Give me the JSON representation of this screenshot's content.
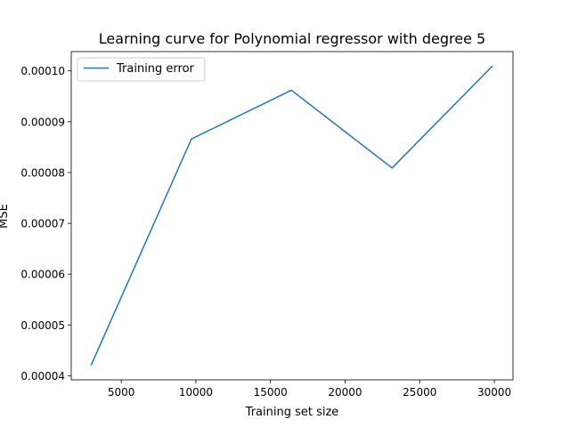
{
  "chart_data": {
    "type": "line",
    "title": "Learning curve for Polynomial regressor with degree 5",
    "xlabel": "Training set size",
    "ylabel": "MSE",
    "xlim": [
      1650,
      31250
    ],
    "ylim": [
      3.92e-05,
      0.0001038
    ],
    "x_ticks": [
      5000,
      10000,
      15000,
      20000,
      25000,
      30000
    ],
    "x_tick_labels": [
      "5000",
      "10000",
      "15000",
      "20000",
      "25000",
      "30000"
    ],
    "y_ticks": [
      4e-05,
      5e-05,
      6e-05,
      7e-05,
      8e-05,
      9e-05,
      0.0001
    ],
    "y_tick_labels": [
      "0.00004",
      "0.00005",
      "0.00006",
      "0.00007",
      "0.00008",
      "0.00009",
      "0.00010"
    ],
    "grid": false,
    "legend_position": "upper-left",
    "series": [
      {
        "name": "Training error",
        "color": "#1f77b4",
        "x": [
          3000,
          9700,
          16400,
          23150,
          29850
        ],
        "y": [
          4.22e-05,
          8.66e-05,
          9.62e-05,
          8.09e-05,
          0.0001009
        ]
      }
    ]
  }
}
